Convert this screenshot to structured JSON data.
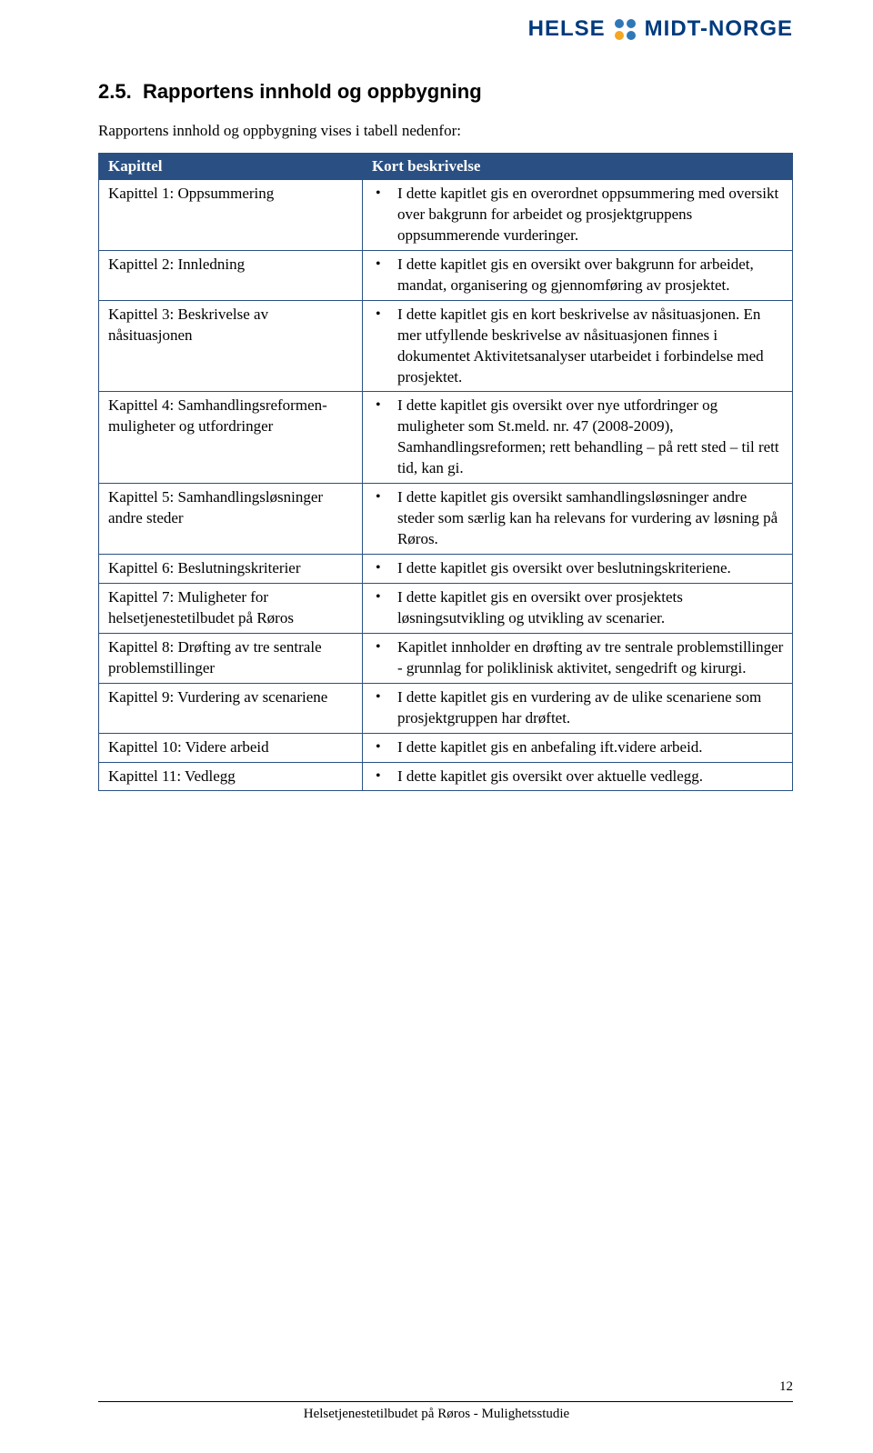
{
  "logo": {
    "left_text": "HELSE",
    "right_text": "MIDT-NORGE",
    "dot_colors": [
      "#2f78b7",
      "#2f78b7",
      "#f5a623",
      "#2f78b7"
    ]
  },
  "heading": {
    "number": "2.5.",
    "title": "Rapportens innhold og oppbygning"
  },
  "intro": "Rapportens innhold og oppbygning vises i tabell nedenfor:",
  "table": {
    "header_left": "Kapittel",
    "header_right": "Kort beskrivelse",
    "header_bg": "#2a5083",
    "header_fg": "#ffffff",
    "border_color": "#2a5083",
    "rows": [
      {
        "chapter": "Kapittel 1: Oppsummering",
        "desc": "I dette kapitlet gis en overordnet oppsummering med oversikt over bakgrunn for arbeidet og prosjektgruppens oppsummerende vurderinger."
      },
      {
        "chapter": "Kapittel 2: Innledning",
        "desc": "I dette kapitlet gis en oversikt over bakgrunn for arbeidet, mandat, organisering og gjennomføring av prosjektet."
      },
      {
        "chapter": "Kapittel 3: Beskrivelse av nåsituasjonen",
        "desc": "I dette kapitlet gis en kort beskrivelse av nåsituasjonen. En mer utfyllende beskrivelse av nåsituasjonen finnes i dokumentet Aktivitetsanalyser utarbeidet i forbindelse med prosjektet."
      },
      {
        "chapter": "Kapittel 4: Samhandlingsreformen-muligheter og utfordringer",
        "desc": "I dette kapitlet gis oversikt over nye utfordringer og muligheter som St.meld. nr. 47 (2008-2009), Samhandlingsreformen; rett behandling – på rett sted – til rett tid, kan gi."
      },
      {
        "chapter": "Kapittel 5: Samhandlingsløsninger andre steder",
        "desc": "I dette kapitlet gis oversikt samhandlingsløsninger andre steder som særlig kan ha relevans for vurdering av løsning på Røros."
      },
      {
        "chapter": "Kapittel 6: Beslutningskriterier",
        "desc": "I dette kapitlet gis oversikt over beslutningskriteriene."
      },
      {
        "chapter": "Kapittel 7: Muligheter for helsetjenestetilbudet på Røros",
        "desc": "I dette kapitlet gis en oversikt over prosjektets løsningsutvikling og utvikling av scenarier."
      },
      {
        "chapter": "Kapittel 8: Drøfting av tre sentrale problemstillinger",
        "desc": "Kapitlet innholder en drøfting av tre sentrale problemstillinger - grunnlag for poliklinisk aktivitet, sengedrift og kirurgi."
      },
      {
        "chapter": "Kapittel 9: Vurdering av scenariene",
        "desc": "I dette kapitlet gis en vurdering av de ulike scenariene som prosjektgruppen har drøftet."
      },
      {
        "chapter": "Kapittel 10: Videre arbeid",
        "desc": "I dette kapitlet gis en anbefaling ift.videre arbeid."
      },
      {
        "chapter": "Kapittel 11: Vedlegg",
        "desc": "I dette kapitlet gis oversikt over aktuelle vedlegg."
      }
    ]
  },
  "footer": {
    "text": "Helsetjenestetilbudet på Røros - Mulighetsstudie",
    "page": "12"
  }
}
